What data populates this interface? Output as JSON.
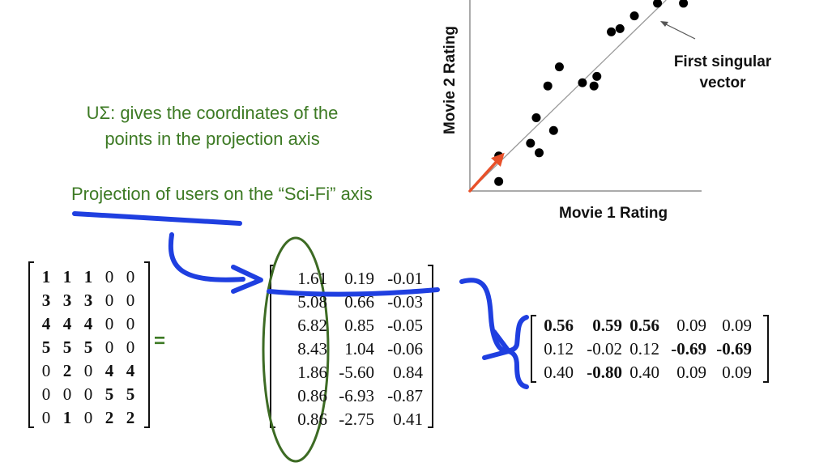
{
  "annotations": {
    "usigma_line1": "UΣ: gives the coordinates of the",
    "usigma_line2": "points in the projection axis",
    "projection": "Projection of users on the “Sci-Fi” axis"
  },
  "chart": {
    "xlabel": "Movie 1 Rating",
    "ylabel": "Movie 2 Rating",
    "callout_line1": "First singular",
    "callout_line2": "vector"
  },
  "chart_data": {
    "type": "scatter",
    "xlabel": "Movie 1 Rating",
    "ylabel": "Movie 2 Rating",
    "x": [
      1.0,
      1.0,
      2.1,
      2.4,
      2.3,
      2.9,
      2.7,
      3.1,
      3.9,
      4.4,
      4.3,
      4.9,
      5.2,
      5.7,
      6.5,
      7.4
    ],
    "y": [
      0.3,
      1.1,
      1.5,
      1.2,
      2.3,
      1.9,
      3.3,
      3.9,
      3.4,
      3.6,
      3.3,
      5.0,
      5.1,
      5.5,
      5.9,
      5.9
    ],
    "xlim": [
      0,
      8
    ],
    "ylim": [
      0,
      6
    ],
    "singular_vector_line": {
      "from": [
        0,
        0
      ],
      "to": [
        6.8,
        6.0
      ]
    },
    "arrow": {
      "from": [
        0,
        0
      ],
      "to": [
        1.2,
        1.2
      ],
      "color": "#e8512a"
    },
    "grid": false
  },
  "matrices": {
    "A": [
      [
        "1",
        "1",
        "1",
        "0",
        "0"
      ],
      [
        "3",
        "3",
        "3",
        "0",
        "0"
      ],
      [
        "4",
        "4",
        "4",
        "0",
        "0"
      ],
      [
        "5",
        "5",
        "5",
        "0",
        "0"
      ],
      [
        "0",
        "2",
        "0",
        "4",
        "4"
      ],
      [
        "0",
        "0",
        "0",
        "5",
        "5"
      ],
      [
        "0",
        "1",
        "0",
        "2",
        "2"
      ]
    ],
    "equals": "=",
    "U_Sigma": [
      [
        "1.61",
        "0.19",
        "-0.01"
      ],
      [
        "5.08",
        "0.66",
        "-0.03"
      ],
      [
        "6.82",
        "0.85",
        "-0.05"
      ],
      [
        "8.43",
        "1.04",
        "-0.06"
      ],
      [
        "1.86",
        "-5.60",
        "0.84"
      ],
      [
        "0.86",
        "-6.93",
        "-0.87"
      ],
      [
        "0.86",
        "-2.75",
        "0.41"
      ]
    ],
    "V_T": [
      [
        "0.56",
        "0.59",
        "0.56",
        "0.09",
        "0.09"
      ],
      [
        "0.12",
        "-0.02",
        "0.12",
        "-0.69",
        "-0.69"
      ],
      [
        "0.40",
        "-0.80",
        "0.40",
        "0.09",
        "0.09"
      ]
    ]
  },
  "colors": {
    "annotation_green": "#3d7a24",
    "ink_blue": "#1f3fe0",
    "arrow_red": "#e8512a"
  }
}
